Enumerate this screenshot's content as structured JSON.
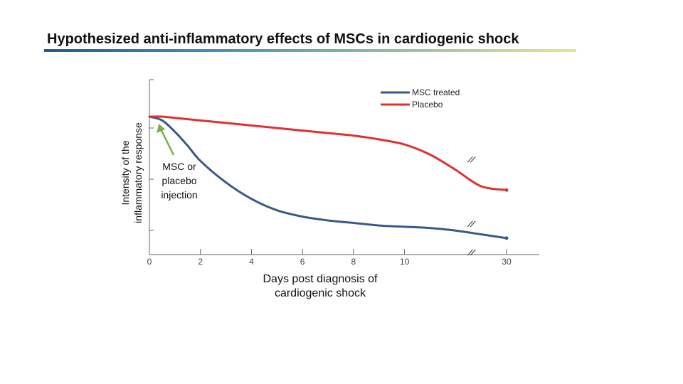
{
  "slide": {
    "title": "Hypothesized anti-inflammatory effects of MSCs in cardiogenic shock",
    "accent_colors": [
      "#1f5c8a",
      "#8cc0a0",
      "#e4e88c"
    ]
  },
  "chart_data": {
    "type": "line",
    "title": "",
    "xlabel": "Days post diagnosis of cardiogenic shock",
    "ylabel": "Intensity of the inflammatory response",
    "x_ticks": [
      "0",
      "2",
      "4",
      "6",
      "8",
      "10",
      "30"
    ],
    "x_tick_values": [
      0,
      2,
      4,
      6,
      8,
      10,
      14
    ],
    "axis_break": "between 10 and 30",
    "y_ticks_labeled": false,
    "ylim": [
      0,
      100
    ],
    "grid": false,
    "legend_position": "top-right",
    "series": [
      {
        "name": "MSC treated",
        "color": "#3a5a86",
        "x": [
          0,
          0.5,
          1,
          1.5,
          2,
          3,
          4,
          5,
          6,
          7,
          8,
          9,
          10,
          11,
          12,
          13,
          14
        ],
        "y": [
          100,
          97,
          88,
          77,
          65,
          48,
          35,
          26,
          21,
          18,
          16,
          14,
          13,
          12,
          10,
          7,
          4
        ]
      },
      {
        "name": "Placebo",
        "color": "#e03030",
        "x": [
          0,
          0.5,
          1,
          2,
          3,
          4,
          5,
          6,
          7,
          8,
          9,
          10,
          11,
          12,
          13,
          14
        ],
        "y": [
          100,
          100,
          99,
          97,
          95,
          93,
          91,
          89,
          87,
          85,
          82,
          78,
          70,
          58,
          45,
          42
        ]
      }
    ],
    "annotations": [
      {
        "text": [
          "MSC or",
          "placebo",
          "injection"
        ],
        "x": 0.2,
        "y": 100,
        "arrow_color": "#7aae4c"
      }
    ]
  }
}
